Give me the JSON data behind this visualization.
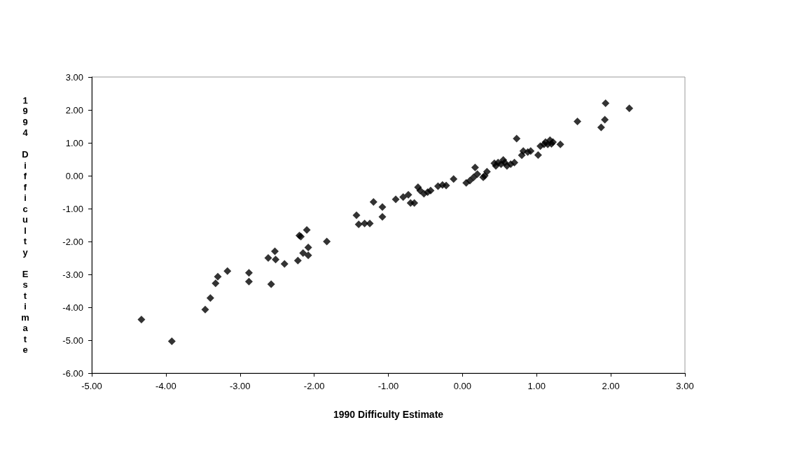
{
  "chart_data": {
    "type": "scatter",
    "xlabel": "1990 Difficulty Estimate",
    "ylabel": "1994 Difficulty Estimate",
    "marker": "diamond",
    "grid": false,
    "xlim": [
      -5,
      3
    ],
    "ylim": [
      -6,
      3
    ],
    "xticks": [
      {
        "value": -5,
        "label": "-5.00"
      },
      {
        "value": -4,
        "label": "-4.00"
      },
      {
        "value": -3,
        "label": "-3.00"
      },
      {
        "value": -2,
        "label": "-2.00"
      },
      {
        "value": -1,
        "label": "-1.00"
      },
      {
        "value": 0,
        "label": "0.00"
      },
      {
        "value": 1,
        "label": "1.00"
      },
      {
        "value": 2,
        "label": "2.00"
      },
      {
        "value": 3,
        "label": "3.00"
      }
    ],
    "yticks": [
      {
        "value": -6,
        "label": "-6.00"
      },
      {
        "value": -5,
        "label": "-5.00"
      },
      {
        "value": -4,
        "label": "-4.00"
      },
      {
        "value": -3,
        "label": "-3.00"
      },
      {
        "value": -2,
        "label": "-2.00"
      },
      {
        "value": -1,
        "label": "-1.00"
      },
      {
        "value": 0,
        "label": "0.00"
      },
      {
        "value": 1,
        "label": "1.00"
      },
      {
        "value": 2,
        "label": "2.00"
      },
      {
        "value": 3,
        "label": "3.00"
      }
    ],
    "series": [
      {
        "color": "#000000",
        "x": [
          -4.33,
          -3.92,
          -3.47,
          -3.4,
          -3.33,
          -3.3,
          -3.17,
          -2.88,
          -2.88,
          -2.62,
          -2.58,
          -2.53,
          -2.52,
          -2.4,
          -2.22,
          -2.2,
          -2.18,
          -2.15,
          -2.1,
          -2.08,
          -2.08,
          -1.83,
          -1.43,
          -1.4,
          -1.32,
          -1.25,
          -1.2,
          -1.08,
          -1.08,
          -0.9,
          -0.8,
          -0.73,
          -0.7,
          -0.65,
          -0.6,
          -0.57,
          -0.52,
          -0.47,
          -0.43,
          -0.33,
          -0.27,
          -0.22,
          -0.12,
          0.05,
          0.1,
          0.15,
          0.17,
          0.2,
          0.28,
          0.3,
          0.33,
          0.43,
          0.45,
          0.48,
          0.52,
          0.55,
          0.57,
          0.6,
          0.65,
          0.7,
          0.73,
          0.8,
          0.82,
          0.88,
          0.92,
          1.02,
          1.05,
          1.1,
          1.12,
          1.15,
          1.18,
          1.2,
          1.22,
          1.32,
          1.55,
          1.87,
          1.92,
          1.93,
          2.25
        ],
        "values": [
          -4.37,
          -5.03,
          -4.07,
          -3.72,
          -3.27,
          -3.07,
          -2.9,
          -2.95,
          -3.22,
          -2.5,
          -3.3,
          -2.3,
          -2.55,
          -2.68,
          -2.58,
          -1.82,
          -1.85,
          -2.35,
          -1.65,
          -2.42,
          -2.18,
          -2.0,
          -1.2,
          -1.48,
          -1.45,
          -1.45,
          -0.8,
          -0.95,
          -1.25,
          -0.72,
          -0.65,
          -0.58,
          -0.83,
          -0.83,
          -0.35,
          -0.45,
          -0.55,
          -0.5,
          -0.45,
          -0.32,
          -0.28,
          -0.3,
          -0.1,
          -0.22,
          -0.15,
          -0.05,
          0.25,
          0.05,
          -0.05,
          0.0,
          0.12,
          0.38,
          0.3,
          0.4,
          0.35,
          0.48,
          0.4,
          0.3,
          0.35,
          0.4,
          1.13,
          0.62,
          0.75,
          0.72,
          0.75,
          0.63,
          0.9,
          0.95,
          1.02,
          0.95,
          1.08,
          0.97,
          1.02,
          0.95,
          1.65,
          1.47,
          1.7,
          2.2,
          2.05
        ]
      }
    ]
  }
}
